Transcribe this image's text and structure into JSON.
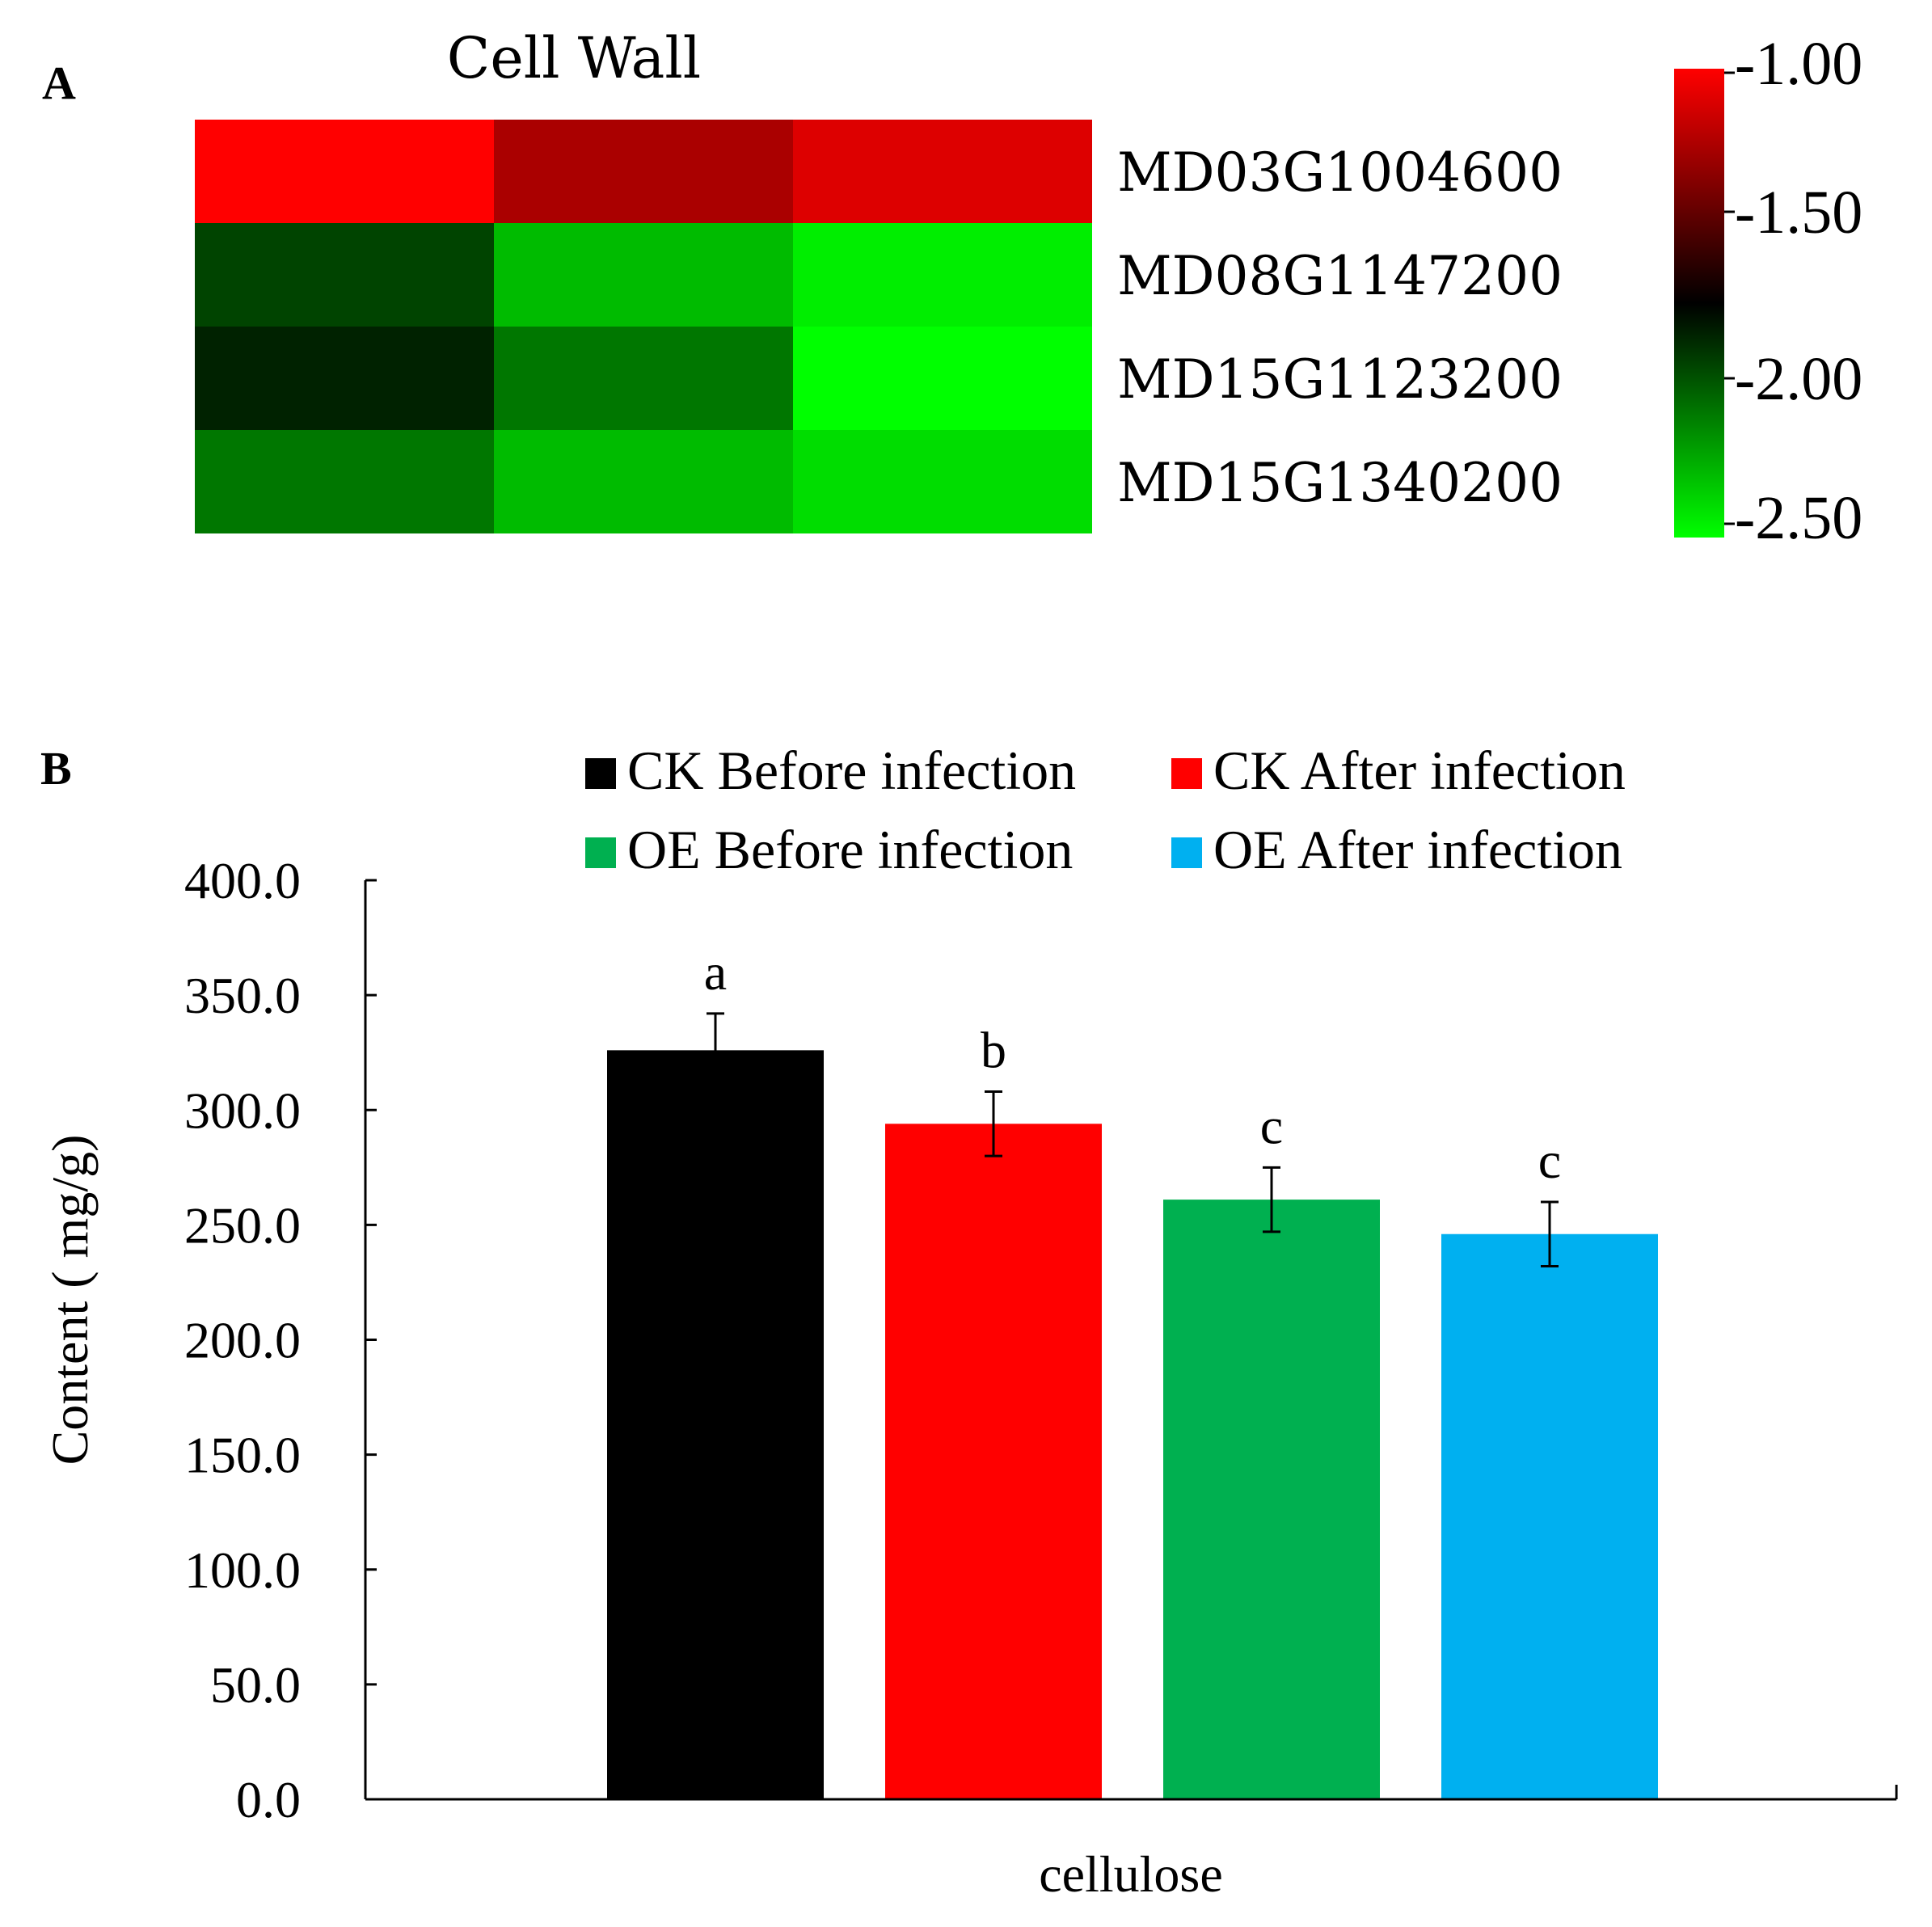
{
  "chart_data": [
    {
      "panel": "A",
      "type": "heatmap",
      "title": "Cell Wall",
      "rows": [
        "MD03G1004600",
        "MD08G1147200",
        "MD15G1123200",
        "MD15G1340200"
      ],
      "values": [
        [
          -1.0,
          -1.25,
          -1.1
        ],
        [
          -1.95,
          -2.3,
          -2.45
        ],
        [
          -1.85,
          -2.1,
          -2.5
        ],
        [
          -2.1,
          -2.3,
          -2.4
        ]
      ],
      "colorbar": {
        "ticks": [
          "-1.00",
          "-1.50",
          "-2.00",
          "-2.50"
        ],
        "range": [
          -2.5,
          -1.0
        ],
        "colors": {
          "high": "#ff0000",
          "mid": "#000000",
          "low": "#00ff00"
        }
      }
    },
    {
      "panel": "B",
      "type": "bar",
      "categories": [
        "cellulose"
      ],
      "series": [
        {
          "name": "CK Before infection",
          "values": [
            326
          ],
          "error": [
            16
          ],
          "letter": "a",
          "color": "#000000"
        },
        {
          "name": "CK After infection",
          "values": [
            294
          ],
          "error": [
            14
          ],
          "letter": "b",
          "color": "#ff0000"
        },
        {
          "name": "OE Before infection",
          "values": [
            261
          ],
          "error": [
            14
          ],
          "letter": "c",
          "color": "#00b050"
        },
        {
          "name": "OE After infection",
          "values": [
            246
          ],
          "error": [
            14
          ],
          "letter": "c",
          "color": "#00b0f0"
        }
      ],
      "ylabel": "Content ( mg/g)",
      "ylim": [
        0,
        400
      ],
      "yticks": [
        "0.0",
        "50.0",
        "100.0",
        "150.0",
        "200.0",
        "250.0",
        "300.0",
        "350.0",
        "400.0"
      ]
    }
  ]
}
